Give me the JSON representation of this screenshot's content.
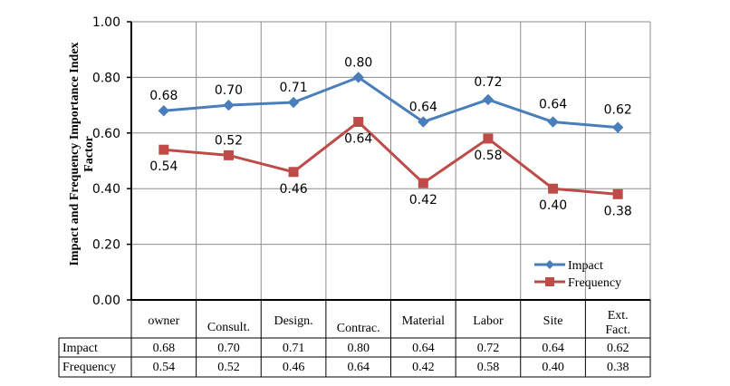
{
  "chart_data": {
    "type": "line",
    "categories": [
      "owner",
      "Consult.",
      "Design.",
      "Contrac.",
      "Material",
      "Labor",
      "Site",
      "Ext. Fact."
    ],
    "series": [
      {
        "name": "Impact",
        "color": "#4a7ebb",
        "marker": "diamond",
        "values": [
          0.68,
          0.7,
          0.71,
          0.8,
          0.64,
          0.72,
          0.64,
          0.62
        ],
        "labels": [
          "0.68",
          "0.70",
          "0.71",
          "0.80",
          "0.64",
          "0.72",
          "0.64",
          "0.62"
        ]
      },
      {
        "name": "Frequency",
        "color": "#be4b48",
        "marker": "square",
        "values": [
          0.54,
          0.52,
          0.46,
          0.64,
          0.42,
          0.58,
          0.4,
          0.38
        ],
        "labels": [
          "0.54",
          "0.52",
          "0.46",
          "0.64",
          "0.42",
          "0.58",
          "0.40",
          "0.38"
        ]
      }
    ],
    "ylim": [
      0,
      1
    ],
    "yticks": [
      "0.00",
      "0.20",
      "0.40",
      "0.60",
      "0.80",
      "1.00"
    ],
    "ylabel_lines": [
      "Impact and Frequency Importance Index",
      "Factor"
    ],
    "xlabel": "",
    "grid": true,
    "legend_position": "bottom-right",
    "data_table": true
  }
}
